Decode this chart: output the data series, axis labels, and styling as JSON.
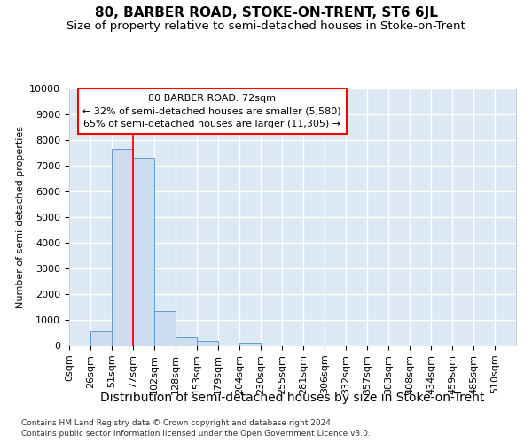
{
  "title": "80, BARBER ROAD, STOKE-ON-TRENT, ST6 6JL",
  "subtitle": "Size of property relative to semi-detached houses in Stoke-on-Trent",
  "xlabel": "Distribution of semi-detached houses by size in Stoke-on-Trent",
  "ylabel": "Number of semi-detached properties",
  "footnote1": "Contains HM Land Registry data © Crown copyright and database right 2024.",
  "footnote2": "Contains public sector information licensed under the Open Government Licence v3.0.",
  "bar_labels": [
    "0sqm",
    "26sqm",
    "51sqm",
    "77sqm",
    "102sqm",
    "128sqm",
    "153sqm",
    "179sqm",
    "204sqm",
    "230sqm",
    "255sqm",
    "281sqm",
    "306sqm",
    "332sqm",
    "357sqm",
    "383sqm",
    "408sqm",
    "434sqm",
    "459sqm",
    "485sqm",
    "510sqm"
  ],
  "bar_values": [
    0,
    550,
    7650,
    7300,
    1330,
    350,
    170,
    0,
    120,
    0,
    0,
    0,
    0,
    0,
    0,
    0,
    0,
    0,
    0,
    0,
    0
  ],
  "bar_color": "#ccddf0",
  "bar_edge_color": "#6699cc",
  "red_line_x": 3.0,
  "annotation_line1": "80 BARBER ROAD: 72sqm",
  "annotation_line2": "← 32% of semi-detached houses are smaller (5,580)",
  "annotation_line3": "65% of semi-detached houses are larger (11,305) →",
  "ylim": [
    0,
    10000
  ],
  "yticks": [
    0,
    1000,
    2000,
    3000,
    4000,
    5000,
    6000,
    7000,
    8000,
    9000,
    10000
  ],
  "bg_color": "#dce9f5",
  "grid_color": "#ffffff",
  "title_fontsize": 11,
  "subtitle_fontsize": 9.5,
  "xlabel_fontsize": 10,
  "ylabel_fontsize": 8,
  "footnote_fontsize": 6.5,
  "tick_fontsize": 8,
  "xtick_fontsize": 8
}
